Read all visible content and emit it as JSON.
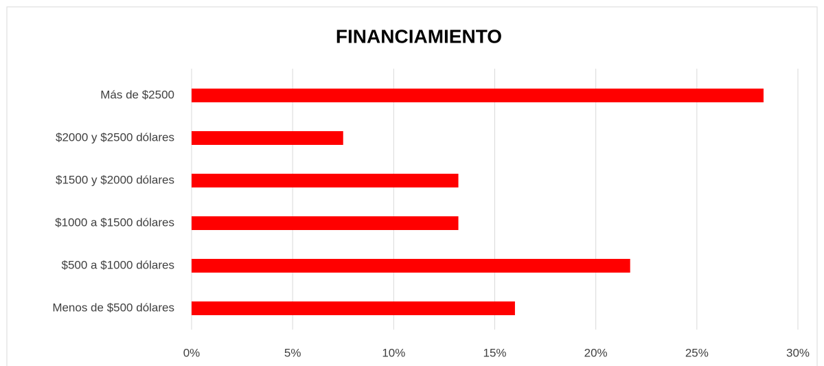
{
  "chart_data": {
    "type": "bar",
    "orientation": "horizontal",
    "title": "FINANCIAMIENTO",
    "categories": [
      "Más de $2500",
      "$2000 y $2500 dólares",
      "$1500 y $2000 dólares",
      "$1000 a $1500 dólares",
      "$500 a $1000 dólares",
      "Menos de $500 dólares"
    ],
    "values": [
      28.3,
      7.5,
      13.2,
      13.2,
      21.7,
      16.0
    ],
    "color": "#ff0000",
    "xlim": [
      0,
      30
    ],
    "xticks": [
      {
        "value": 0,
        "label": "0%"
      },
      {
        "value": 5,
        "label": "5%"
      },
      {
        "value": 10,
        "label": "10%"
      },
      {
        "value": 15,
        "label": "15%"
      },
      {
        "value": 20,
        "label": "20%"
      },
      {
        "value": 25,
        "label": "25%"
      },
      {
        "value": 30,
        "label": "30%"
      }
    ],
    "grid": true
  }
}
